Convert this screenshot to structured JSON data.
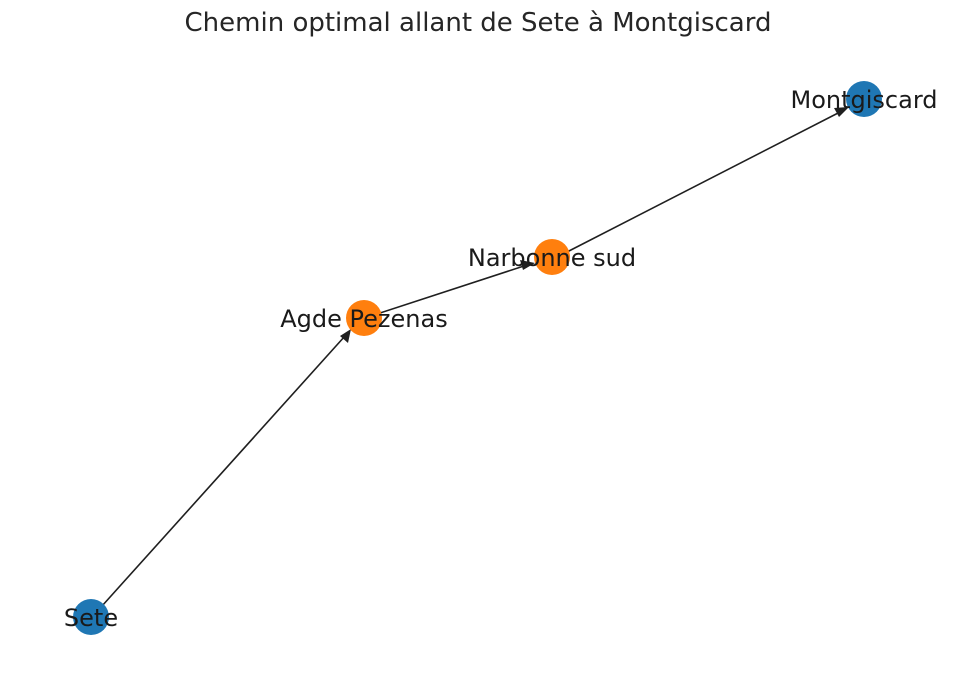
{
  "title": "Chemin optimal allant de Sete à Montgiscard",
  "colors": {
    "endpoint": "#1f77b4",
    "intermediate": "#ff7f0e",
    "edge": "#1f1f1f"
  },
  "nodes": [
    {
      "id": "sete",
      "label": "Sete",
      "role": "endpoint"
    },
    {
      "id": "agde",
      "label": "Agde Pezenas",
      "role": "intermediate"
    },
    {
      "id": "narbonne",
      "label": "Narbonne sud",
      "role": "intermediate"
    },
    {
      "id": "montgiscard",
      "label": "Montgiscard",
      "role": "endpoint"
    }
  ],
  "edges": [
    {
      "from": "sete",
      "to": "agde"
    },
    {
      "from": "agde",
      "to": "narbonne"
    },
    {
      "from": "narbonne",
      "to": "montgiscard"
    }
  ]
}
